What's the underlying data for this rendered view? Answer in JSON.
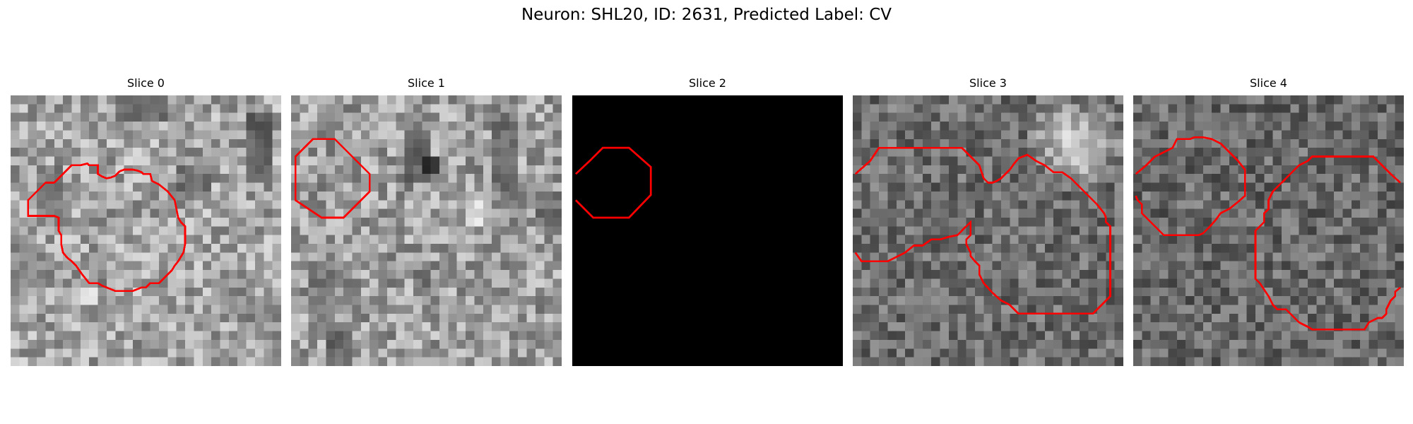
{
  "figure": {
    "title": "Neuron: SHL20, ID: 2631, Predicted Label: CV"
  },
  "colors": {
    "contour": "#ff0000",
    "background": "#ffffff"
  },
  "panels": [
    {
      "title": "Slice 0",
      "image": "grayscale-noise-patch",
      "contour": "large-cell-outline"
    },
    {
      "title": "Slice 1",
      "image": "grayscale-noise-patch",
      "contour": "octagon-outline-top-left"
    },
    {
      "title": "Slice 2",
      "image": "black-patch",
      "contour": "octagon-outline-top-left"
    },
    {
      "title": "Slice 3",
      "image": "grayscale-blurred-patch",
      "contour": "irregular-cell-outline"
    },
    {
      "title": "Slice 4",
      "image": "grayscale-blurred-patch",
      "contour": "two-cell-outlines"
    }
  ]
}
